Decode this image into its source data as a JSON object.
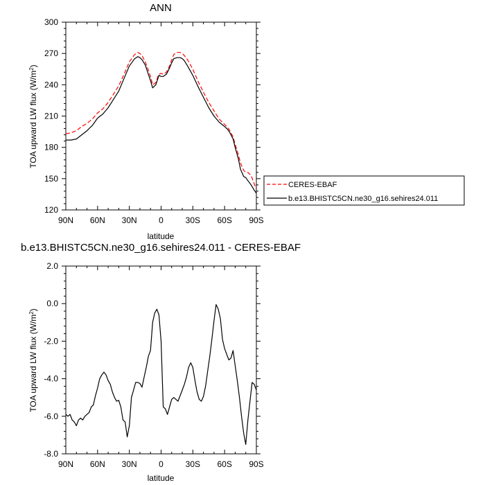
{
  "chart_data": [
    {
      "type": "line",
      "title": "ANN",
      "xlabel": "latitude",
      "ylabel": "TOA upward LW flux (W/m",
      "ylabel_sup": "2",
      "ylabel_end": ")",
      "xlim": [
        90,
        -90
      ],
      "ylim": [
        120,
        300
      ],
      "xticks": [
        90,
        60,
        30,
        0,
        -30,
        -60,
        -90
      ],
      "xtick_labels": [
        "90N",
        "60N",
        "30N",
        "0",
        "30S",
        "60S",
        "90S"
      ],
      "yticks": [
        120,
        150,
        180,
        210,
        240,
        270,
        300
      ],
      "ytick_labels": [
        "120",
        "150",
        "180",
        "210",
        "240",
        "270",
        "300"
      ],
      "legend_position": "right",
      "series": [
        {
          "name": "CERES-EBAF",
          "color": "#ff0000",
          "dash": true,
          "x": [
            90,
            85,
            80,
            75,
            70,
            65,
            60,
            55,
            50,
            45,
            40,
            35,
            30,
            25,
            22,
            20,
            18,
            15,
            12,
            10,
            8,
            5,
            3,
            2,
            0,
            -2,
            -5,
            -8,
            -10,
            -12,
            -15,
            -18,
            -20,
            -22,
            -25,
            -30,
            -35,
            -40,
            -45,
            -50,
            -55,
            -60,
            -63,
            -65,
            -68,
            -70,
            -73,
            -75,
            -78,
            -80,
            -82,
            -85,
            -88,
            -90
          ],
          "values": [
            193,
            194,
            196,
            200,
            203,
            207,
            213,
            217,
            223,
            231,
            239,
            250,
            262,
            269,
            271,
            270,
            268,
            262,
            254,
            248,
            240,
            242,
            248,
            250,
            251,
            250,
            252,
            258,
            264,
            269,
            271,
            271,
            270,
            268,
            264,
            255,
            243,
            233,
            223,
            215,
            207,
            202,
            199,
            196,
            190,
            183,
            173,
            165,
            158,
            156,
            156,
            153,
            145,
            140
          ]
        },
        {
          "name": "b.e13.BHISTC5CN.ne30_g16.sehires24.011",
          "color": "#000000",
          "dash": false,
          "x": [
            90,
            85,
            80,
            75,
            70,
            65,
            60,
            55,
            50,
            45,
            40,
            35,
            30,
            25,
            22,
            20,
            18,
            15,
            12,
            10,
            8,
            5,
            3,
            2,
            0,
            -2,
            -5,
            -8,
            -10,
            -12,
            -15,
            -18,
            -20,
            -22,
            -25,
            -30,
            -35,
            -40,
            -45,
            -50,
            -55,
            -60,
            -63,
            -65,
            -68,
            -70,
            -73,
            -75,
            -78,
            -80,
            -82,
            -85,
            -88,
            -90
          ],
          "values": [
            187,
            187,
            188,
            192,
            196,
            201,
            208,
            212,
            218,
            226,
            234,
            246,
            258,
            265,
            267,
            266,
            264,
            259,
            250,
            244,
            237,
            240,
            246,
            249,
            248,
            248,
            250,
            256,
            261,
            265,
            266,
            266,
            265,
            263,
            258,
            249,
            238,
            228,
            218,
            210,
            204,
            200,
            197,
            194,
            188,
            180,
            169,
            159,
            152,
            151,
            148,
            144,
            139,
            136
          ]
        }
      ]
    },
    {
      "type": "line",
      "title": "b.e13.BHISTC5CN.ne30_g16.sehires24.011 - CERES-EBAF",
      "xlabel": "latitude",
      "ylabel": "TOA upward LW flux (W/m",
      "ylabel_sup": "2",
      "ylabel_end": ")",
      "xlim": [
        90,
        -90
      ],
      "ylim": [
        -8,
        2
      ],
      "xticks": [
        90,
        60,
        30,
        0,
        -30,
        -60,
        -90
      ],
      "xtick_labels": [
        "90N",
        "60N",
        "30N",
        "0",
        "30S",
        "60S",
        "90S"
      ],
      "yticks": [
        -8,
        -6,
        -4,
        -2,
        0,
        2
      ],
      "ytick_labels": [
        "-8.0",
        "-6.0",
        "-4.0",
        "-2.0",
        "0.0",
        "2.0"
      ],
      "series": [
        {
          "color": "#000000",
          "dash": false,
          "x": [
            90,
            88,
            86,
            84,
            82,
            80,
            78,
            76,
            74,
            72,
            70,
            68,
            66,
            64,
            62,
            60,
            58,
            56,
            54,
            52,
            50,
            48,
            46,
            44,
            42,
            40,
            38,
            36,
            34,
            32,
            30,
            28,
            26,
            24,
            22,
            20,
            18,
            16,
            14,
            12,
            10,
            8,
            6,
            4,
            2,
            0,
            -2,
            -4,
            -6,
            -8,
            -10,
            -12,
            -14,
            -16,
            -18,
            -20,
            -22,
            -24,
            -26,
            -28,
            -30,
            -32,
            -34,
            -36,
            -38,
            -40,
            -42,
            -44,
            -46,
            -48,
            -50,
            -52,
            -54,
            -56,
            -58,
            -60,
            -62,
            -64,
            -66,
            -68,
            -70,
            -72,
            -74,
            -76,
            -78,
            -80,
            -82,
            -84,
            -86,
            -88,
            -90
          ],
          "values": [
            -5.9,
            -6.0,
            -5.9,
            -6.2,
            -6.3,
            -6.5,
            -6.2,
            -6.1,
            -6.2,
            -6.0,
            -5.9,
            -5.8,
            -5.5,
            -5.4,
            -4.9,
            -4.5,
            -4.0,
            -3.8,
            -3.65,
            -3.8,
            -4.1,
            -4.3,
            -4.7,
            -5.0,
            -5.2,
            -5.15,
            -5.5,
            -6.2,
            -6.3,
            -7.1,
            -6.5,
            -5.0,
            -4.6,
            -4.2,
            -4.2,
            -4.25,
            -4.45,
            -3.9,
            -3.4,
            -2.8,
            -2.5,
            -1.0,
            -0.5,
            -0.3,
            -0.6,
            -2.0,
            -5.5,
            -5.6,
            -5.9,
            -5.5,
            -5.1,
            -5.0,
            -5.1,
            -5.2,
            -4.9,
            -4.6,
            -4.3,
            -3.9,
            -3.4,
            -3.15,
            -3.4,
            -4.1,
            -4.7,
            -5.1,
            -5.2,
            -4.95,
            -4.4,
            -3.6,
            -2.8,
            -1.9,
            -0.9,
            -0.05,
            -0.3,
            -0.8,
            -1.9,
            -2.4,
            -2.7,
            -3.0,
            -2.9,
            -2.5,
            -3.3,
            -4.1,
            -5.0,
            -6.0,
            -6.9,
            -7.5,
            -6.2,
            -5.2,
            -4.2,
            -4.3,
            -4.6
          ]
        }
      ]
    }
  ]
}
